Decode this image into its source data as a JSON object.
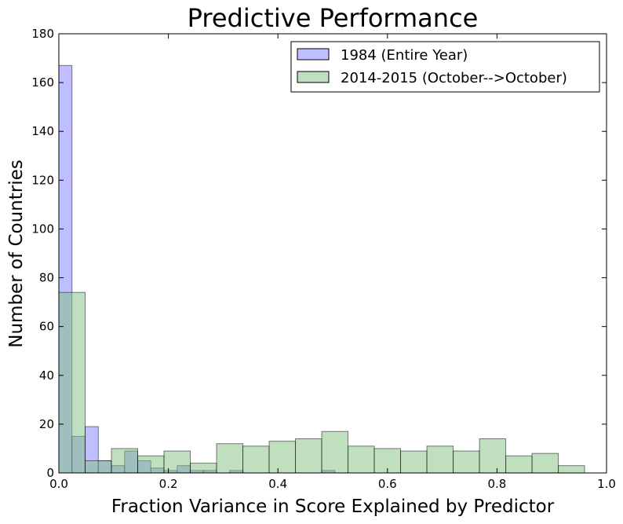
{
  "chart_data": {
    "type": "bar",
    "title": "Predictive Performance",
    "xlabel": "Fraction Variance in Score Explained by Predictor",
    "ylabel": "Number of Countries",
    "xlim": [
      0.0,
      1.0
    ],
    "ylim": [
      0,
      180
    ],
    "xticks": [
      "0.0",
      "0.2",
      "0.4",
      "0.6",
      "0.8",
      "1.0"
    ],
    "yticks": [
      "0",
      "20",
      "40",
      "60",
      "80",
      "100",
      "120",
      "140",
      "160",
      "180"
    ],
    "grid": false,
    "legend_position": "top-right",
    "series": [
      {
        "name": "1984 (Entire Year)",
        "color": "#7f7fff",
        "bin_width": 0.024,
        "bin_starts": [
          0.0,
          0.024,
          0.048,
          0.072,
          0.096,
          0.12,
          0.144,
          0.168,
          0.192,
          0.216,
          0.24,
          0.264,
          0.288,
          0.312,
          0.336,
          0.36,
          0.384,
          0.408,
          0.432,
          0.456,
          0.48
        ],
        "values": [
          167,
          15,
          19,
          5,
          3,
          9,
          5,
          2,
          1,
          3,
          1,
          1,
          0,
          1,
          0,
          0,
          0,
          0,
          0,
          0,
          1
        ]
      },
      {
        "name": "2014-2015 (October-->October)",
        "color": "#7fbf7f",
        "bin_width": 0.048,
        "bin_starts": [
          0.0,
          0.048,
          0.096,
          0.144,
          0.192,
          0.24,
          0.288,
          0.336,
          0.384,
          0.432,
          0.48,
          0.528,
          0.576,
          0.624,
          0.672,
          0.72,
          0.768,
          0.816,
          0.864,
          0.912
        ],
        "values": [
          74,
          5,
          10,
          7,
          9,
          4,
          12,
          11,
          13,
          14,
          17,
          11,
          10,
          9,
          11,
          9,
          14,
          7,
          8,
          3
        ]
      }
    ]
  }
}
